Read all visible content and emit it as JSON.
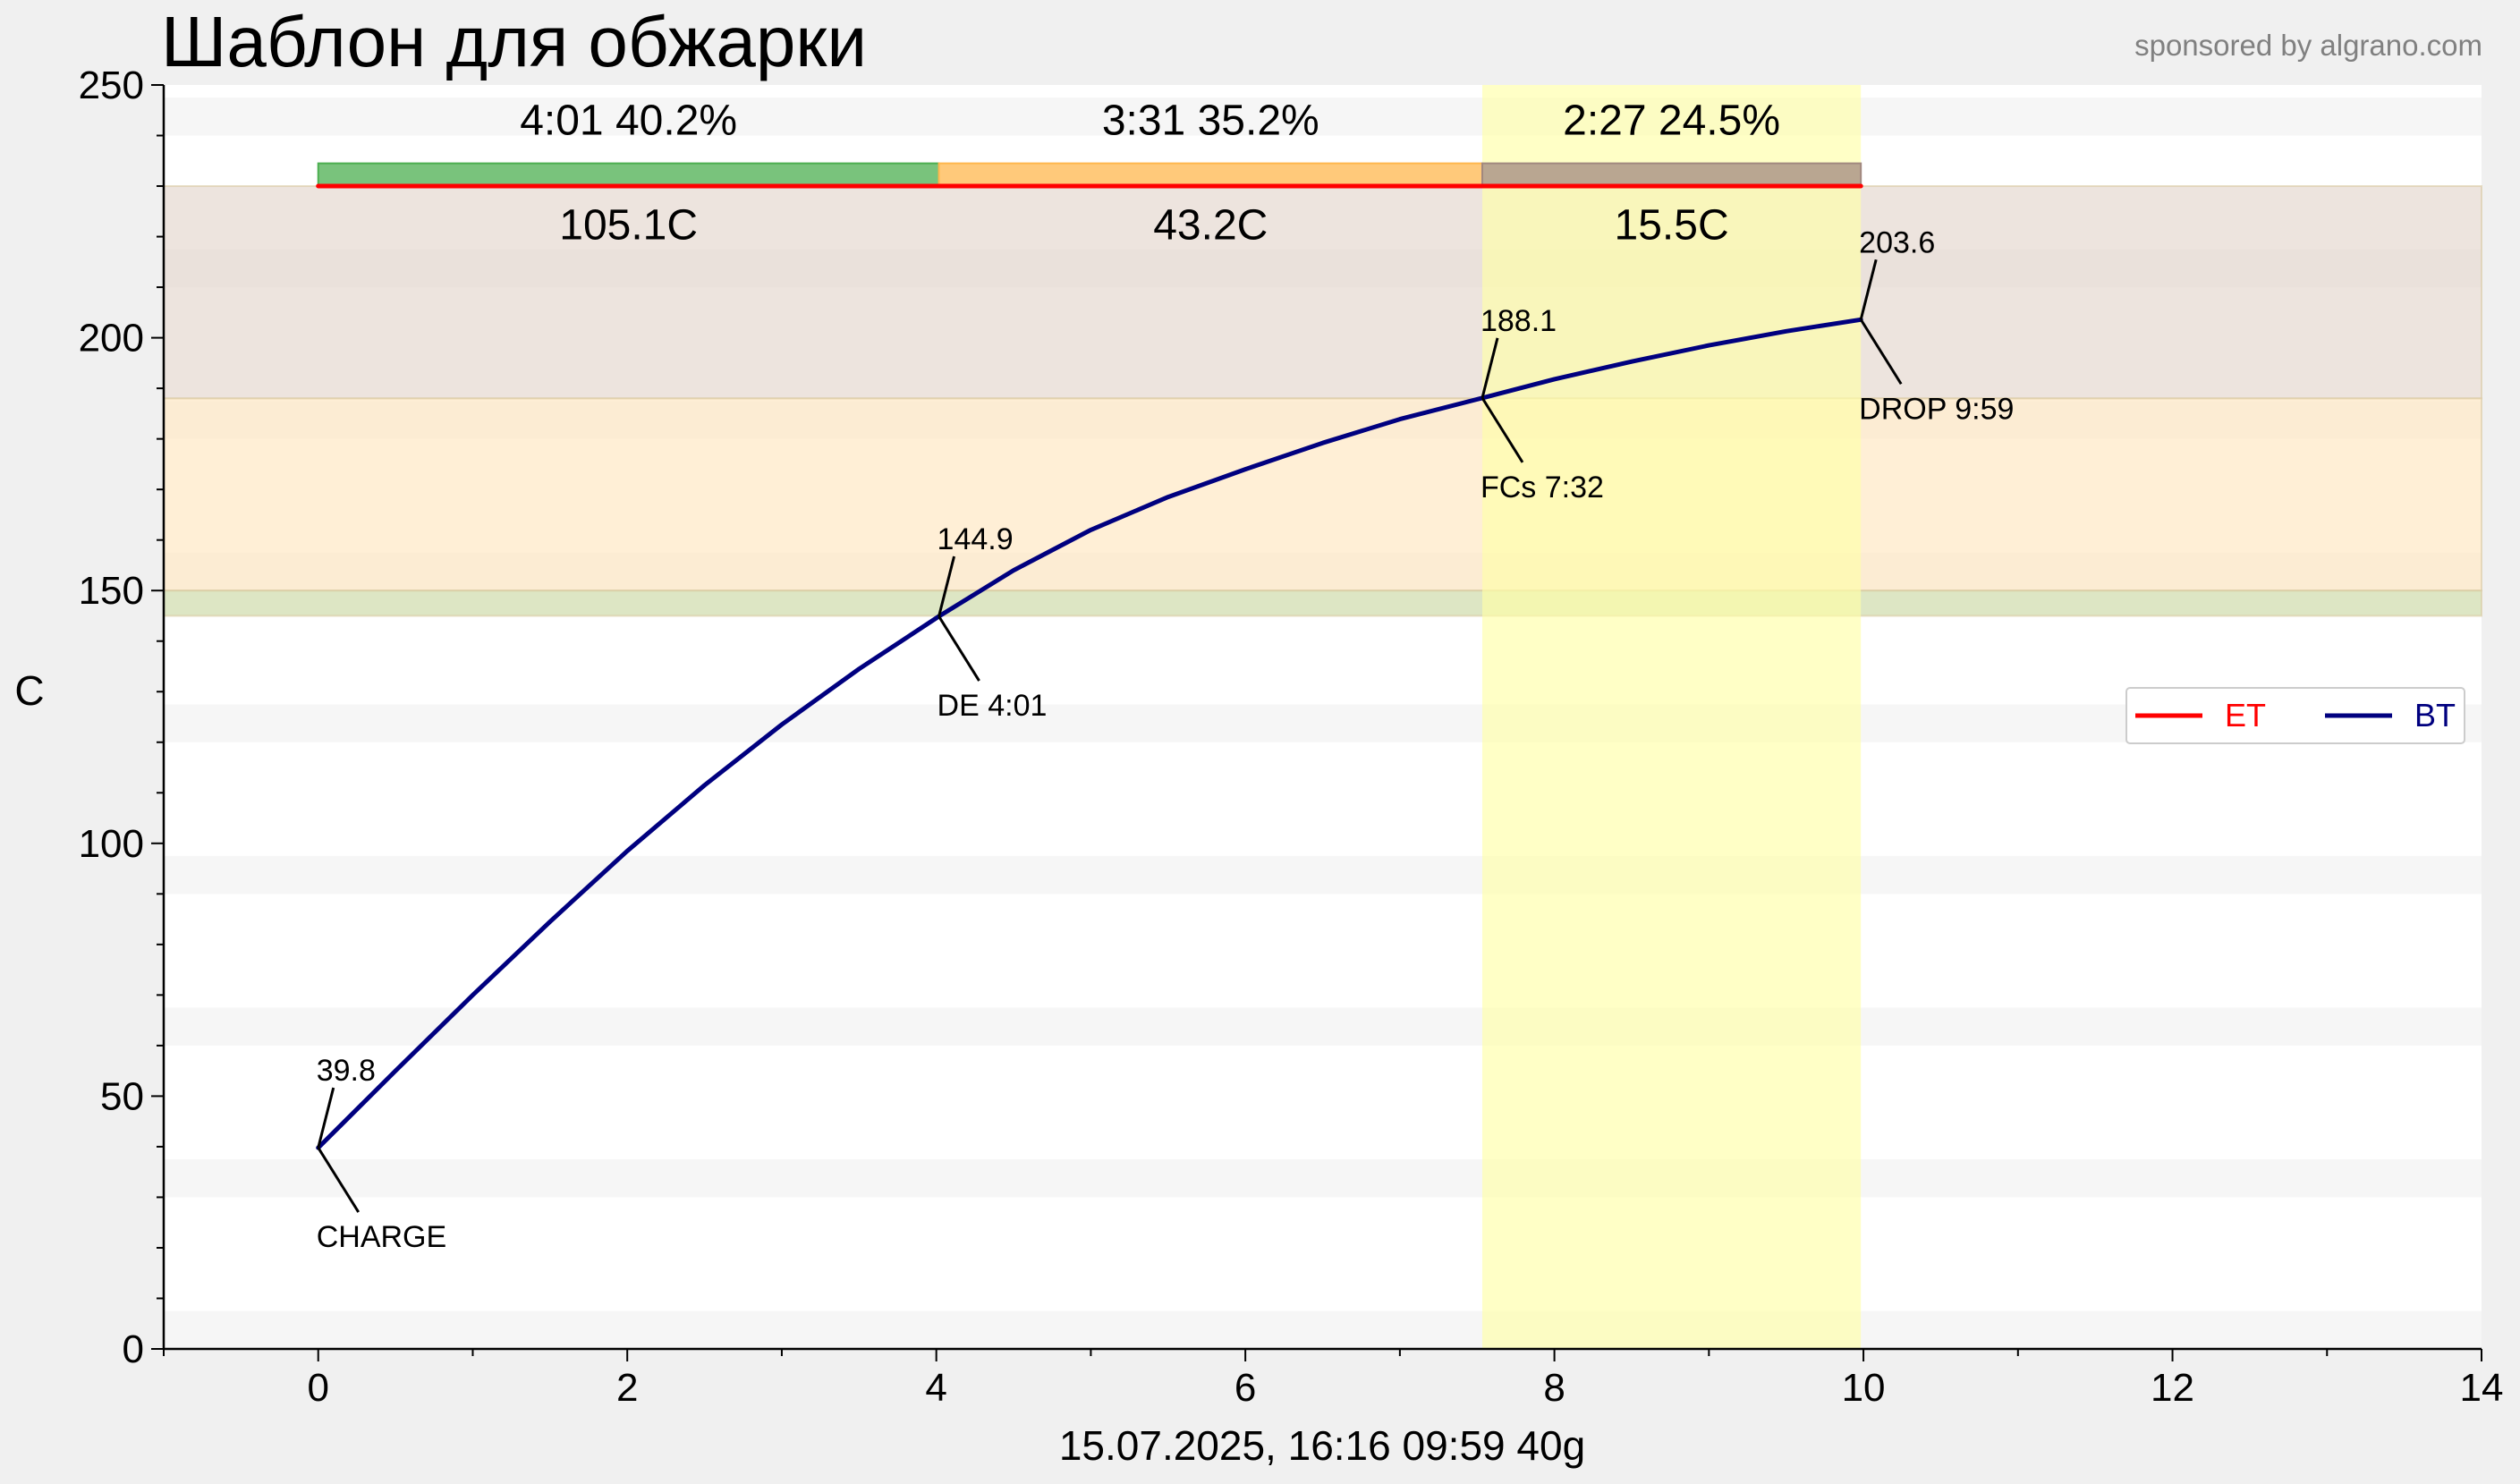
{
  "title": "Шаблон для обжарки",
  "sponsor": "sponsored by algrano.com",
  "chart_data": {
    "type": "line",
    "title": "Шаблон для обжарки",
    "xlabel": "15.07.2025, 16:16   09:59   40g",
    "ylabel": "C",
    "xlim": [
      -1,
      14
    ],
    "ylim": [
      0,
      250
    ],
    "x_ticks": [
      0,
      2,
      4,
      6,
      8,
      10,
      12,
      14
    ],
    "y_ticks": [
      0,
      50,
      100,
      150,
      200,
      250
    ],
    "x_minor_step": 1,
    "y_minor_step": 10,
    "colors": {
      "bt": "#00007f",
      "et": "#ff0000",
      "phase_dry": "#4caf50",
      "phase_maillard": "#ffb74d",
      "phase_finish": "#a1887f",
      "band_dev": "#e6d8d0",
      "band_maillard": "#ffe8c4",
      "band_dry": "#cfdcab",
      "dev_span": "#ffffa8",
      "stripe": "#f6f6f6"
    },
    "series": [
      {
        "name": "BT",
        "x": [
          0,
          0.5,
          1,
          1.5,
          2,
          2.5,
          3,
          3.5,
          4.0167,
          4.5,
          5,
          5.5,
          6,
          6.5,
          7,
          7.5333,
          8,
          8.5,
          9,
          9.5,
          9.9833
        ],
        "y": [
          39.8,
          55.0,
          70.0,
          84.5,
          98.5,
          111.5,
          123.5,
          134.5,
          144.9,
          154.0,
          162.0,
          168.5,
          174.0,
          179.2,
          183.9,
          188.1,
          191.8,
          195.3,
          198.5,
          201.3,
          203.6
        ]
      },
      {
        "name": "ET",
        "x": [
          0,
          9.9833
        ],
        "y": [
          230,
          230
        ]
      }
    ],
    "bands": [
      {
        "y0": 188,
        "y1": 230,
        "name": "development"
      },
      {
        "y0": 150,
        "y1": 188,
        "name": "maillard"
      },
      {
        "y0": 145,
        "y1": 150,
        "name": "drying"
      }
    ],
    "development_span": {
      "x0": 7.5333,
      "x1": 9.9833
    },
    "phases": [
      {
        "x0": 0,
        "x1": 4.0167,
        "time": "4:01",
        "pct": "40.2%",
        "delta": "105.1C",
        "key": "dry"
      },
      {
        "x0": 4.0167,
        "x1": 7.5333,
        "time": "3:31",
        "pct": "35.2%",
        "delta": "43.2C",
        "key": "maillard"
      },
      {
        "x0": 7.5333,
        "x1": 9.9833,
        "time": "2:27",
        "pct": "24.5%",
        "delta": "15.5C",
        "key": "finish"
      }
    ],
    "events": [
      {
        "x": 0,
        "y": 39.8,
        "value": "39.8",
        "label": "CHARGE"
      },
      {
        "x": 4.0167,
        "y": 144.9,
        "value": "144.9",
        "label": "DE 4:01"
      },
      {
        "x": 7.5333,
        "y": 188.1,
        "value": "188.1",
        "label": "FCs 7:32"
      },
      {
        "x": 9.9833,
        "y": 203.6,
        "value": "203.6",
        "label": "DROP 9:59"
      }
    ],
    "legend": {
      "position": "center-right",
      "entries": [
        "ET",
        "BT"
      ]
    }
  }
}
